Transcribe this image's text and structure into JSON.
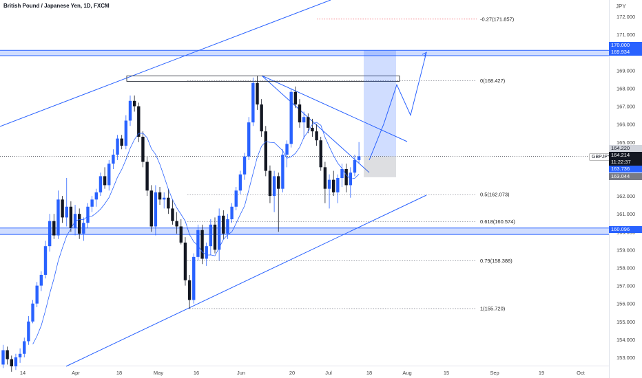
{
  "header": {
    "title": "British Pound / Japanese Yen, 1D, FXCM",
    "currency": "JPY"
  },
  "symbol_tag": "GBPJPY",
  "price_tags": {
    "zone_top": "170.000",
    "zone_bottom": "169.934",
    "support": "160.096",
    "ask": "164.220",
    "current": "164.214",
    "countdown": "11:22:37",
    "ma": "163.736",
    "target_low": "163.044"
  },
  "colors": {
    "up": "#2962ff",
    "down": "#131722",
    "accent": "#2962ff",
    "fib_neg": "#f23645"
  },
  "chart_data": {
    "type": "candlestick",
    "symbol": "GBPJPY",
    "timeframe": "1D",
    "ylim": [
      152.6,
      173.0
    ],
    "x_ticks": [
      "14",
      "Apr",
      "18",
      "May",
      "16",
      "Jun",
      "20",
      "Jul",
      "18",
      "Aug",
      "15",
      "Sep",
      "19",
      "Oct"
    ],
    "y_ticks": [
      153,
      154,
      155,
      156,
      157,
      158,
      159,
      160,
      161,
      162,
      163,
      164,
      165,
      166,
      167,
      168,
      169,
      170,
      171,
      172
    ],
    "fib_levels": [
      {
        "label": "-0.27(171.857)",
        "value": 171.857
      },
      {
        "label": "0(168.427)",
        "value": 168.427
      },
      {
        "label": "0.5(162.073)",
        "value": 162.073
      },
      {
        "label": "0.618(160.574)",
        "value": 160.574
      },
      {
        "label": "0.79(158.388)",
        "value": 158.388
      },
      {
        "label": "1(155.720)",
        "value": 155.72
      }
    ],
    "zones": [
      {
        "name": "resistance",
        "low": 169.934,
        "high": 170.0
      },
      {
        "name": "support",
        "low": 159.97,
        "high": 160.096
      }
    ],
    "projection_path": [
      164.0,
      166.0,
      168.2,
      166.5,
      170.0
    ],
    "ohlc": [
      [
        152.6,
        153.7,
        152.4,
        153.4
      ],
      [
        153.4,
        153.6,
        152.6,
        152.9
      ],
      [
        152.9,
        153.1,
        152.2,
        152.5
      ],
      [
        152.5,
        153.2,
        152.3,
        153.0
      ],
      [
        153.0,
        153.5,
        152.7,
        153.2
      ],
      [
        153.2,
        154.1,
        153.0,
        153.9
      ],
      [
        153.9,
        155.3,
        153.7,
        155.0
      ],
      [
        155.0,
        156.2,
        154.9,
        156.0
      ],
      [
        156.0,
        157.2,
        155.8,
        157.0
      ],
      [
        157.0,
        157.8,
        156.7,
        157.6
      ],
      [
        157.6,
        159.5,
        157.4,
        159.2
      ],
      [
        159.2,
        161.0,
        158.9,
        160.6
      ],
      [
        160.6,
        161.0,
        159.6,
        159.8
      ],
      [
        159.8,
        162.3,
        159.6,
        161.8
      ],
      [
        161.8,
        162.0,
        160.5,
        160.8
      ],
      [
        160.8,
        163.0,
        160.3,
        161.4
      ],
      [
        161.4,
        161.7,
        160.0,
        160.2
      ],
      [
        160.2,
        161.5,
        159.8,
        161.0
      ],
      [
        161.0,
        161.3,
        159.6,
        159.9
      ],
      [
        159.9,
        160.8,
        159.5,
        160.5
      ],
      [
        160.5,
        161.6,
        160.2,
        161.4
      ],
      [
        161.4,
        162.0,
        161.1,
        161.8
      ],
      [
        161.8,
        162.4,
        161.4,
        162.2
      ],
      [
        162.2,
        163.3,
        162.0,
        163.1
      ],
      [
        163.1,
        163.6,
        162.4,
        162.6
      ],
      [
        162.6,
        164.0,
        162.3,
        163.8
      ],
      [
        163.8,
        164.6,
        163.5,
        164.3
      ],
      [
        164.3,
        165.4,
        164.0,
        165.2
      ],
      [
        165.2,
        165.4,
        164.6,
        164.8
      ],
      [
        164.8,
        166.5,
        164.6,
        166.2
      ],
      [
        166.2,
        167.6,
        165.9,
        167.3
      ],
      [
        167.3,
        167.6,
        166.7,
        167.0
      ],
      [
        167.0,
        167.2,
        165.0,
        165.3
      ],
      [
        165.3,
        165.6,
        163.6,
        163.9
      ],
      [
        163.9,
        164.2,
        162.0,
        162.3
      ],
      [
        162.3,
        162.6,
        160.0,
        160.3
      ],
      [
        160.3,
        162.6,
        159.8,
        162.2
      ],
      [
        162.2,
        162.5,
        161.5,
        161.8
      ],
      [
        161.8,
        162.2,
        161.3,
        161.9
      ],
      [
        161.9,
        162.4,
        161.0,
        161.3
      ],
      [
        161.3,
        161.8,
        160.4,
        160.6
      ],
      [
        160.6,
        161.1,
        159.9,
        160.3
      ],
      [
        160.3,
        160.7,
        159.3,
        159.4
      ],
      [
        159.4,
        159.7,
        157.0,
        157.3
      ],
      [
        157.3,
        157.6,
        155.7,
        156.2
      ],
      [
        156.2,
        158.8,
        156.0,
        158.6
      ],
      [
        158.6,
        160.4,
        158.4,
        160.1
      ],
      [
        160.1,
        160.4,
        158.2,
        158.5
      ],
      [
        158.5,
        159.4,
        158.1,
        159.2
      ],
      [
        159.2,
        160.7,
        158.7,
        160.4
      ],
      [
        160.4,
        160.8,
        158.8,
        159.0
      ],
      [
        159.0,
        161.3,
        158.4,
        160.9
      ],
      [
        160.9,
        161.2,
        159.6,
        159.9
      ],
      [
        159.9,
        161.0,
        159.6,
        160.7
      ],
      [
        160.7,
        161.6,
        160.5,
        161.4
      ],
      [
        161.4,
        162.5,
        161.2,
        162.3
      ],
      [
        162.3,
        163.4,
        162.1,
        163.2
      ],
      [
        163.2,
        164.4,
        162.9,
        164.2
      ],
      [
        164.2,
        166.4,
        164.0,
        166.1
      ],
      [
        166.1,
        168.6,
        165.9,
        168.3
      ],
      [
        168.3,
        168.7,
        166.8,
        167.1
      ],
      [
        167.1,
        167.4,
        165.3,
        165.6
      ],
      [
        165.6,
        165.9,
        163.1,
        163.4
      ],
      [
        163.4,
        163.7,
        161.6,
        162.0
      ],
      [
        162.0,
        163.4,
        161.1,
        163.1
      ],
      [
        163.1,
        163.3,
        160.0,
        162.4
      ],
      [
        162.4,
        164.6,
        162.2,
        164.3
      ],
      [
        164.3,
        165.1,
        163.6,
        164.9
      ],
      [
        164.9,
        168.0,
        164.7,
        167.8
      ],
      [
        167.8,
        168.1,
        166.9,
        167.1
      ],
      [
        167.1,
        167.4,
        165.8,
        166.1
      ],
      [
        166.1,
        166.7,
        165.2,
        166.4
      ],
      [
        166.4,
        166.6,
        165.5,
        165.8
      ],
      [
        165.8,
        166.3,
        165.3,
        165.6
      ],
      [
        165.6,
        166.0,
        164.8,
        165.1
      ],
      [
        165.1,
        165.3,
        163.4,
        163.6
      ],
      [
        163.6,
        163.9,
        161.6,
        162.4
      ],
      [
        162.4,
        163.2,
        161.3,
        162.9
      ],
      [
        162.9,
        163.4,
        162.0,
        162.2
      ],
      [
        162.2,
        163.2,
        161.6,
        163.0
      ],
      [
        163.0,
        163.8,
        162.5,
        163.5
      ],
      [
        163.5,
        163.8,
        162.2,
        162.6
      ],
      [
        162.6,
        163.6,
        161.9,
        163.3
      ],
      [
        163.3,
        164.3,
        163.1,
        164.0
      ],
      [
        164.0,
        165.0,
        163.8,
        164.21
      ]
    ]
  }
}
